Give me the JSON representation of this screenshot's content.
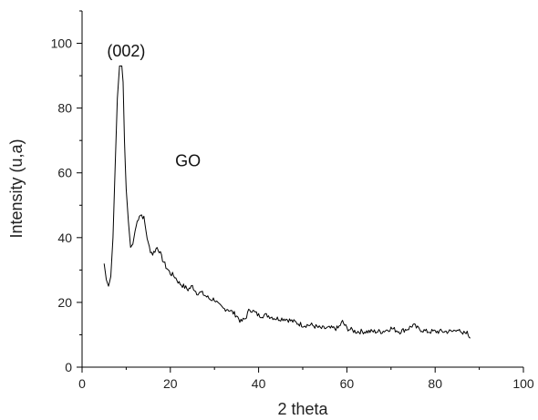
{
  "chart_data": {
    "type": "line",
    "xlabel": "2 theta",
    "ylabel": "Intensity (u,a)",
    "xlim": [
      0,
      100
    ],
    "ylim": [
      0,
      110
    ],
    "x_ticks": [
      0,
      20,
      40,
      60,
      80,
      100
    ],
    "y_ticks": [
      0,
      20,
      40,
      60,
      80,
      100
    ],
    "x_tick_labels": [
      "0",
      "20",
      "40",
      "60",
      "80",
      "100"
    ],
    "y_tick_labels": [
      "0",
      "20",
      "40",
      "60",
      "80",
      "100"
    ],
    "grid": false,
    "annotations": [
      {
        "text": "(002)",
        "x": 10,
        "y": 96
      },
      {
        "text": "GO",
        "x": 24,
        "y": 62
      }
    ],
    "series": [
      {
        "color": "#000000",
        "x": [
          5.0,
          5.5,
          6.0,
          6.5,
          7.0,
          7.5,
          8.0,
          8.5,
          9.0,
          9.3,
          9.6,
          10.0,
          10.5,
          11.0,
          11.5,
          12.0,
          12.5,
          13.0,
          13.5,
          14.0,
          14.5,
          15.0,
          15.5,
          16.0,
          16.5,
          17.0,
          17.5,
          18.0,
          19.0,
          20.0,
          21.0,
          22.0,
          23.0,
          24.0,
          25.0,
          26.0,
          27.0,
          28.0,
          29.0,
          30.0,
          31.0,
          32.0,
          33.0,
          34.0,
          35.0,
          36.0,
          37.0,
          38.0,
          39.0,
          40.0,
          42.0,
          44.0,
          46.0,
          48.0,
          50.0,
          52.0,
          54.0,
          56.0,
          58.0,
          59.0,
          60.0,
          62.0,
          64.0,
          66.0,
          68.0,
          70.0,
          72.0,
          74.0,
          75.0,
          76.0,
          78.0,
          80.0,
          82.0,
          84.0,
          85.0,
          86.0,
          87.0,
          88.0
        ],
        "y": [
          32,
          27,
          25,
          28,
          40,
          62,
          83,
          93,
          93,
          88,
          70,
          55,
          45,
          37,
          38,
          42,
          45,
          47,
          47,
          46,
          42,
          38,
          36,
          35,
          36,
          37,
          36,
          34,
          31,
          29,
          28,
          26,
          25,
          24,
          25,
          23,
          23,
          22,
          21,
          21,
          19,
          18,
          18,
          17,
          16,
          14,
          15,
          18,
          17,
          16,
          16,
          15,
          15,
          14,
          13,
          13,
          12,
          12,
          12,
          14,
          12,
          11,
          11,
          11,
          11,
          12,
          11,
          12,
          13,
          12,
          11,
          11,
          11,
          11,
          12,
          10,
          11,
          9
        ]
      }
    ]
  }
}
